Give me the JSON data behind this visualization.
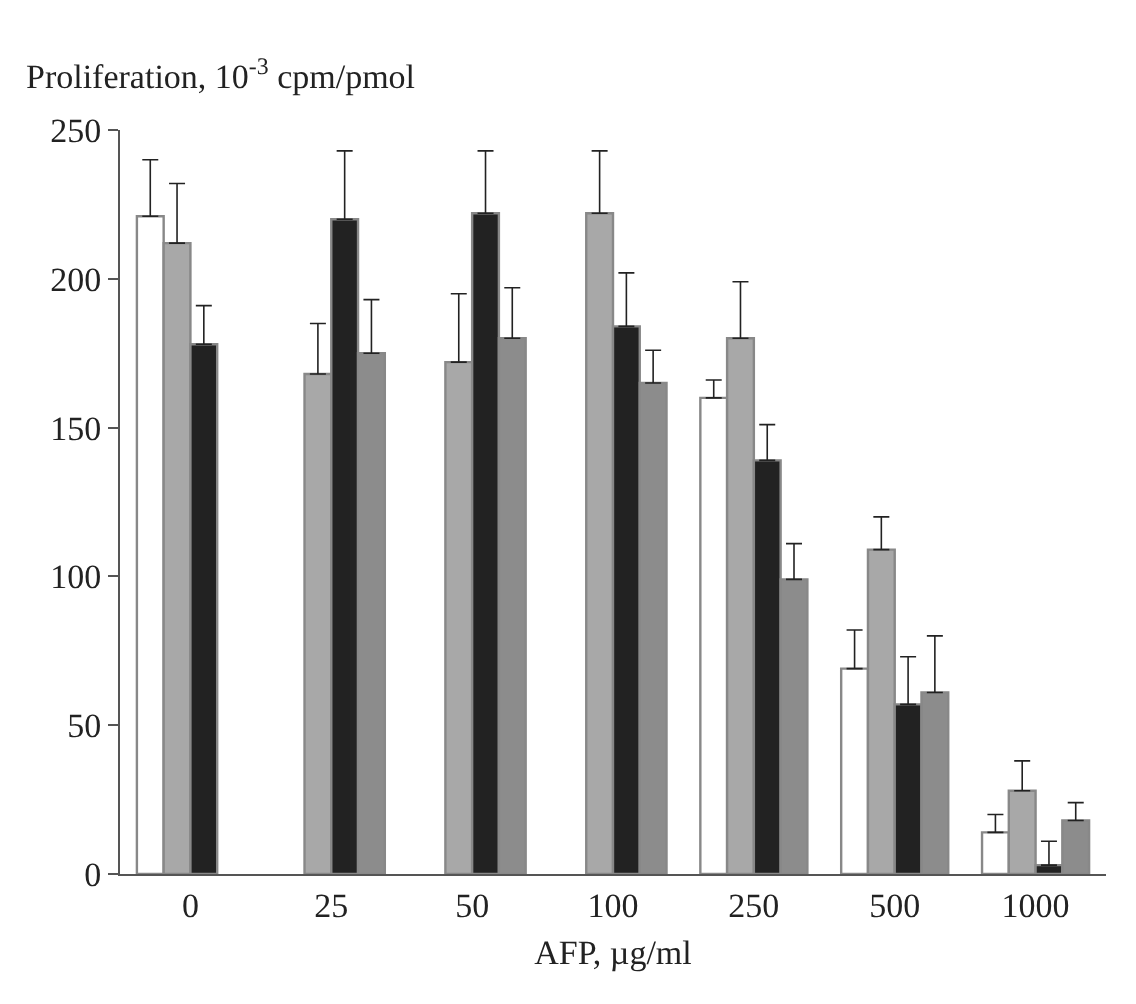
{
  "chart_data": {
    "type": "bar",
    "xlabel": "AFP, µg/ml",
    "ylabel": "Proliferation, 10$^{-3}$ cpm/pmol",
    "categories": [
      "0",
      "25",
      "50",
      "100",
      "250",
      "500",
      "1000"
    ],
    "ylim": [
      0,
      250
    ],
    "yticks": [
      0,
      50,
      100,
      150,
      200,
      250
    ],
    "series": [
      {
        "color": "#ffffff",
        "values": [
          221,
          null,
          null,
          null,
          160,
          69,
          14
        ],
        "errors": [
          [
            221,
            240
          ],
          null,
          null,
          null,
          [
            160,
            166
          ],
          [
            69,
            82
          ],
          [
            14,
            20
          ]
        ]
      },
      {
        "color": "#a8a8a8",
        "values": [
          212,
          168,
          172,
          222,
          180,
          109,
          28
        ],
        "errors": [
          [
            212,
            232
          ],
          [
            168,
            185
          ],
          [
            172,
            195
          ],
          [
            222,
            243
          ],
          [
            180,
            199
          ],
          [
            109,
            120
          ],
          [
            28,
            38
          ]
        ]
      },
      {
        "color": "#222222",
        "values": [
          178,
          220,
          222,
          184,
          139,
          57,
          3
        ],
        "errors": [
          [
            178,
            191
          ],
          [
            220,
            243
          ],
          [
            222,
            243
          ],
          [
            184,
            202
          ],
          [
            139,
            151
          ],
          [
            57,
            73
          ],
          [
            3,
            11
          ]
        ]
      },
      {
        "color": "#8c8c8c",
        "values": [
          null,
          175,
          180,
          165,
          99,
          61,
          18
        ],
        "errors": [
          null,
          [
            175,
            193
          ],
          [
            180,
            197
          ],
          [
            165,
            176
          ],
          [
            99,
            111
          ],
          [
            61,
            80
          ],
          [
            18,
            24
          ]
        ]
      }
    ]
  }
}
